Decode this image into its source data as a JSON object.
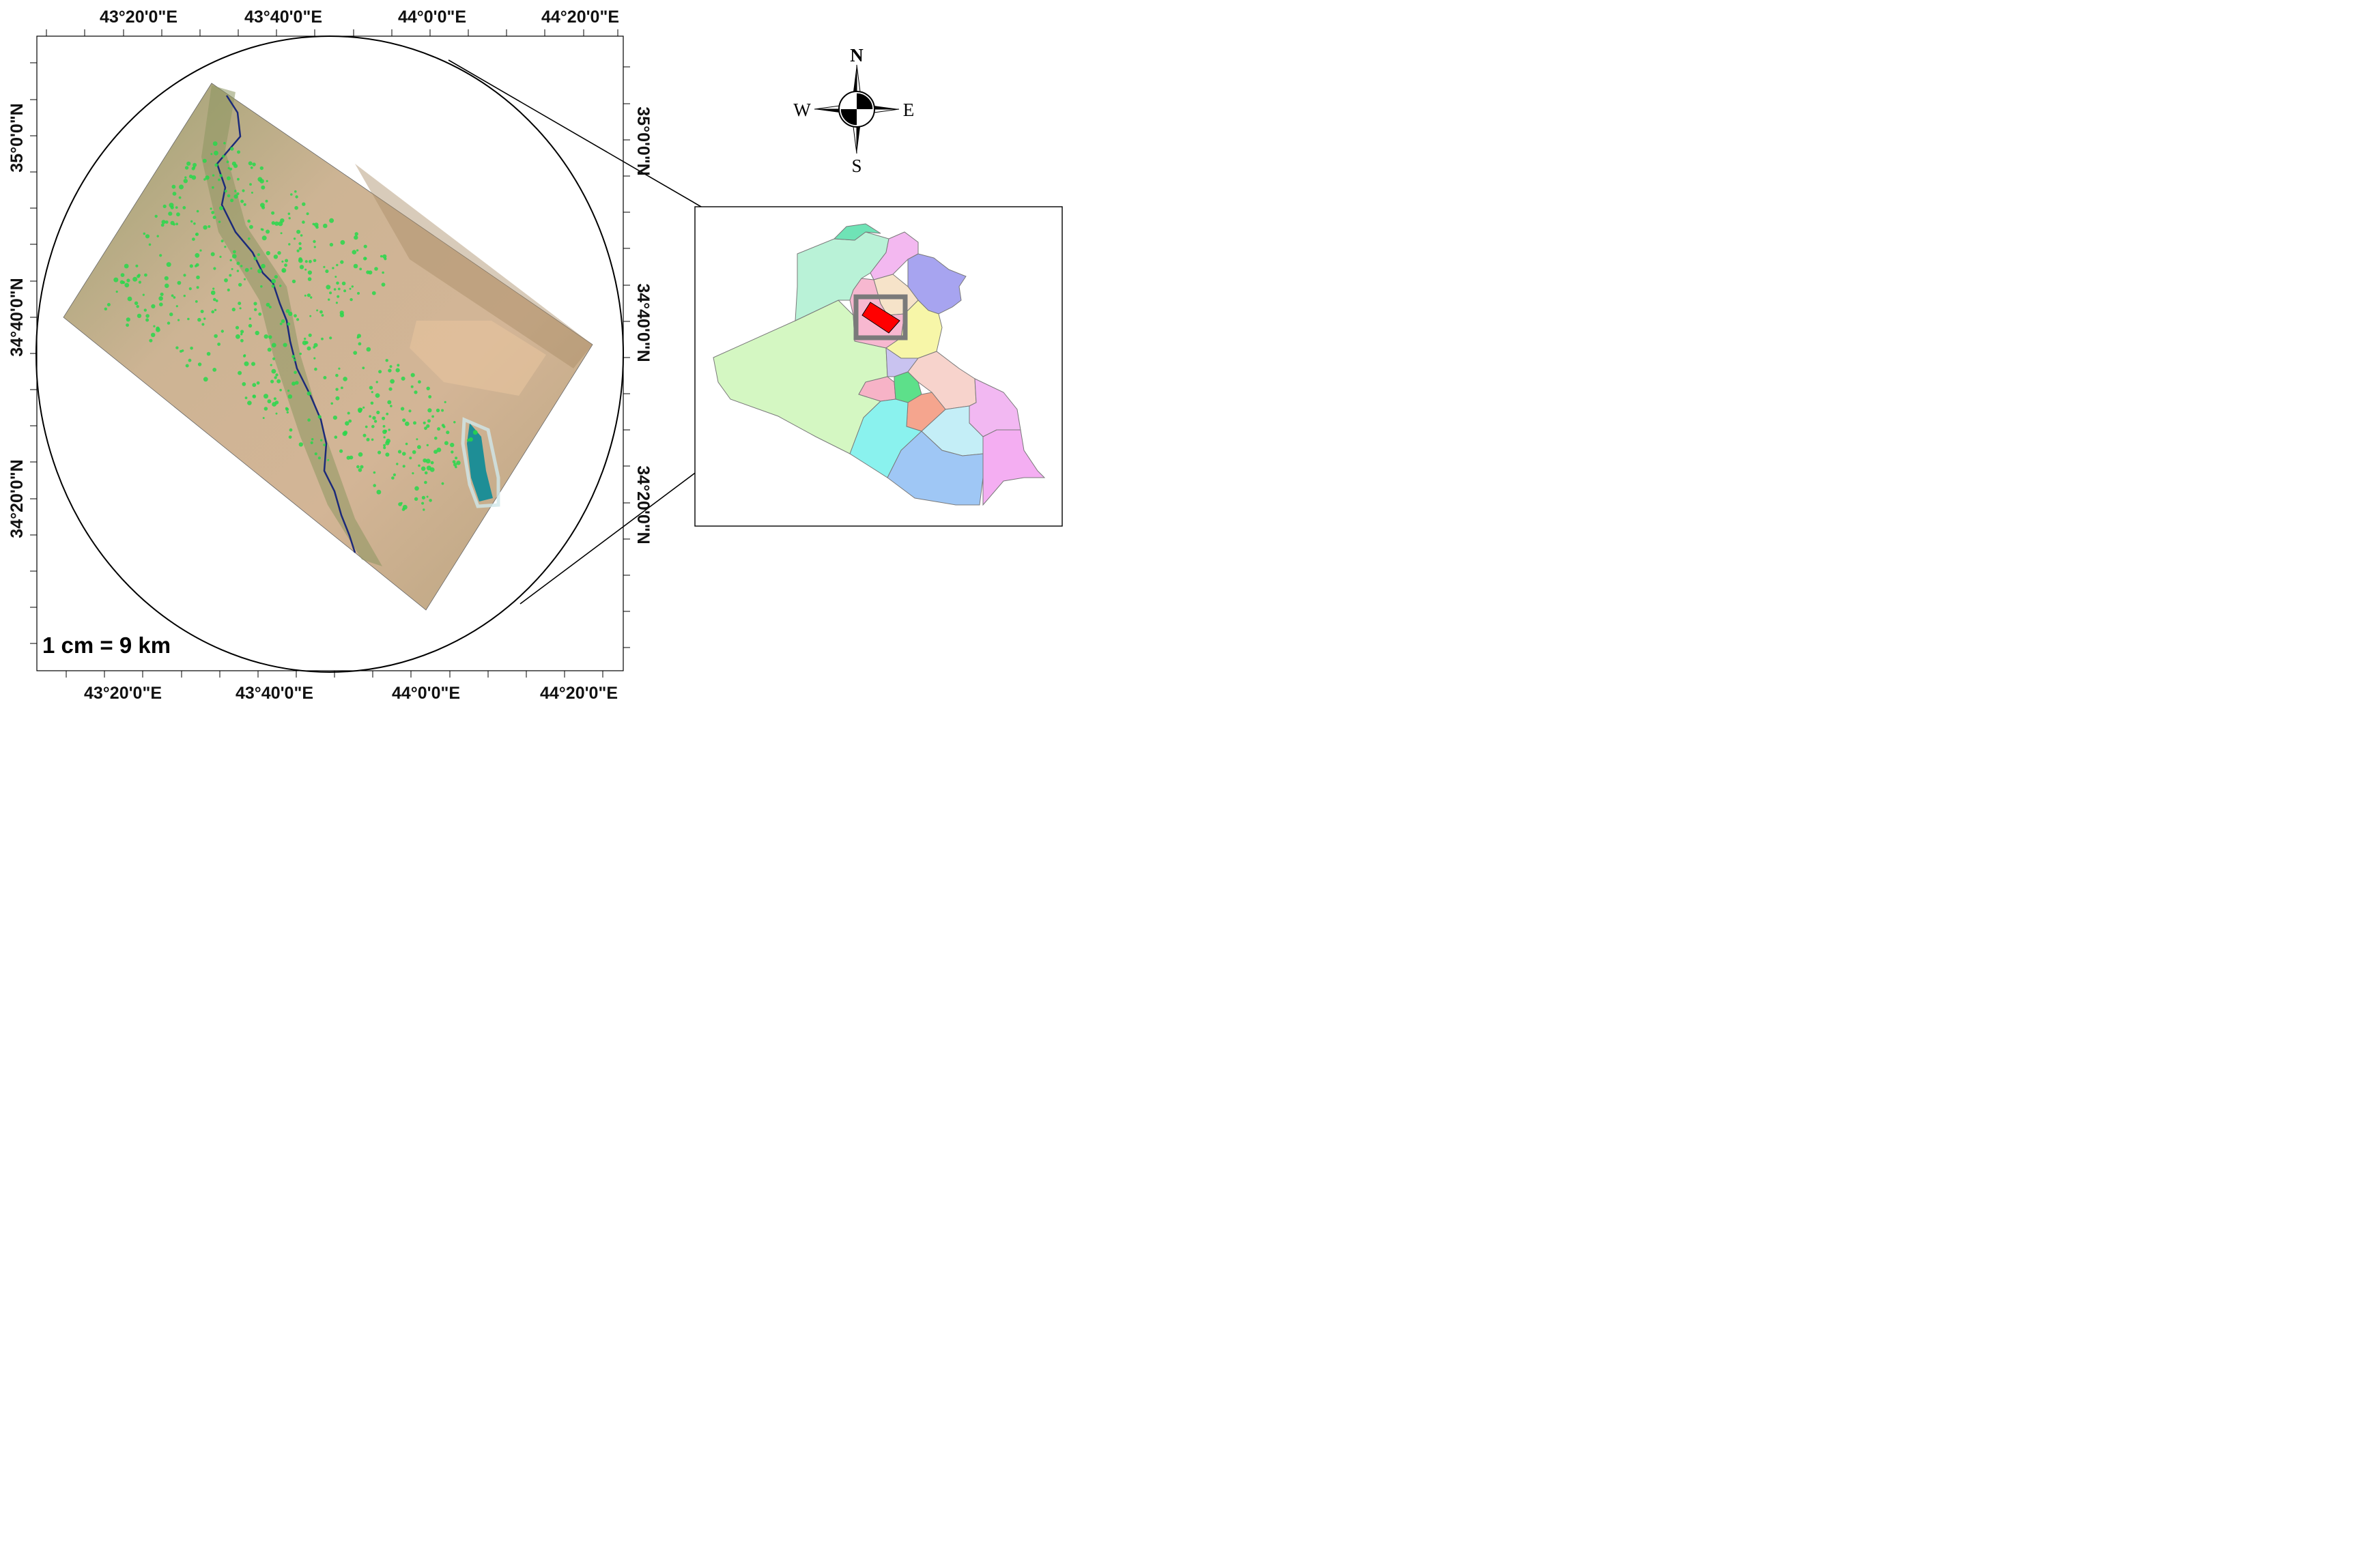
{
  "map": {
    "lon_labels_top": [
      "43°20'0\"E",
      "43°40'0\"E",
      "44°0'0\"E",
      "44°20'0\"E"
    ],
    "lon_labels_bottom": [
      "43°20'0\"E",
      "43°40'0\"E",
      "44°0'0\"E",
      "44°20'0\"E"
    ],
    "lat_labels_left": [
      "35°0'0\"N",
      "34°40'0\"N",
      "34°20'0\"N"
    ],
    "lat_labels_right": [
      "35°0'0\"N",
      "34°40'0\"N",
      "34°20'0\"N"
    ],
    "scale_text": "1 cm = 9 km",
    "north_arrow": {
      "north": "N",
      "south": "S",
      "east": "E",
      "west": "W"
    }
  },
  "colors": {
    "frame": "#000000",
    "study_area_marker": "#ff0000",
    "locator_box": "#7a7a7a",
    "river": "#1c2a7a",
    "cultivation": "#27d84a",
    "lake": "#1e8e96"
  },
  "locator_map": {
    "provinces": [
      {
        "fill": "#6fe3b6"
      },
      {
        "fill": "#b9f2d7"
      },
      {
        "fill": "#f3b8f0"
      },
      {
        "fill": "#f2a8ee"
      },
      {
        "fill": "#a7a4f0"
      },
      {
        "fill": "#f6e3c9"
      },
      {
        "fill": "#f7b8d0"
      },
      {
        "fill": "#f7f6a8"
      },
      {
        "fill": "#d4f7c2"
      },
      {
        "fill": "#c9c3f0"
      },
      {
        "fill": "#f7d3cc"
      },
      {
        "fill": "#f7b3c7"
      },
      {
        "fill": "#5de08a"
      },
      {
        "fill": "#f5a58e"
      },
      {
        "fill": "#f2b8f2"
      },
      {
        "fill": "#c4eef7"
      },
      {
        "fill": "#8af2ee"
      },
      {
        "fill": "#9fc7f5"
      },
      {
        "fill": "#f4aef2"
      }
    ]
  }
}
